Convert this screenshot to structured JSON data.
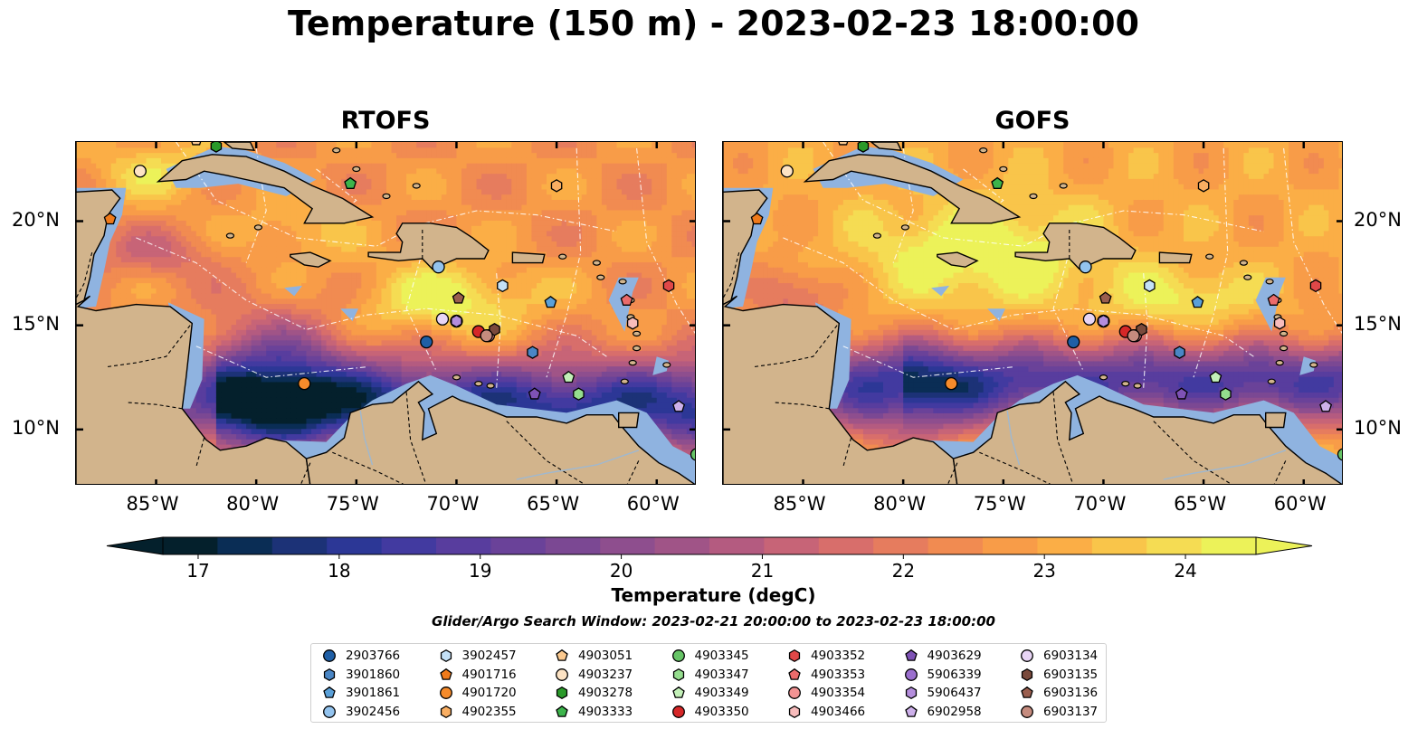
{
  "title": "Temperature (150 m) - 2023-02-23 18:00:00",
  "panels": [
    {
      "title": "RTOFS"
    },
    {
      "title": "GOFS"
    }
  ],
  "axes": {
    "lon_labels": [
      "85°W",
      "80°W",
      "75°W",
      "70°W",
      "65°W",
      "60°W"
    ],
    "lat_labels": [
      "20°N",
      "15°N",
      "10°N"
    ],
    "lon_range": [
      -89,
      -58
    ],
    "lat_range": [
      7.3,
      23.8
    ]
  },
  "colorbar": {
    "label": "Temperature (degC)",
    "ticks": [
      "17",
      "18",
      "19",
      "20",
      "21",
      "22",
      "23",
      "24"
    ],
    "range": [
      16.75,
      24.5
    ],
    "colormap": "thermal",
    "colors": [
      "#04202c",
      "#0a2d55",
      "#1c3277",
      "#2c3796",
      "#423aa0",
      "#583d9e",
      "#6a4299",
      "#7b4893",
      "#8e4e8e",
      "#a05487",
      "#b45b80",
      "#c76477",
      "#d86e6b",
      "#e67c5e",
      "#f18b51",
      "#f89c48",
      "#fbae46",
      "#f9c54a",
      "#f5dc53",
      "#ecf259"
    ],
    "extend": "both"
  },
  "search_window": "Glider/Argo Search Window: 2023-02-21 20:00:00 to 2023-02-23 18:00:00",
  "map_colors": {
    "land": "#d2b48c",
    "shallow": "#8fb3e0",
    "coast": "#000000"
  },
  "platforms": [
    {
      "id": "2903766",
      "marker": "circle",
      "color": "#1f5fa6",
      "lon": -71.5,
      "lat": 14.2
    },
    {
      "id": "3901860",
      "marker": "hexagon",
      "color": "#4a86c5",
      "lon": -66.2,
      "lat": 13.7
    },
    {
      "id": "3901861",
      "marker": "pentagon",
      "color": "#5aa0d8",
      "lon": -65.3,
      "lat": 16.1
    },
    {
      "id": "3902456",
      "marker": "circle",
      "color": "#93c3ee",
      "lon": -70.9,
      "lat": 17.8
    },
    {
      "id": "3902457",
      "marker": "hexagon",
      "color": "#c4e1f7",
      "lon": -67.7,
      "lat": 16.9
    },
    {
      "id": "4901716",
      "marker": "pentagon",
      "color": "#f07a1a",
      "lon": -87.3,
      "lat": 20.1
    },
    {
      "id": "4901720",
      "marker": "circle",
      "color": "#f68b2b",
      "lon": -77.6,
      "lat": 12.2
    },
    {
      "id": "4902355",
      "marker": "hexagon",
      "color": "#f9ae62",
      "lon": -65.0,
      "lat": 21.7
    },
    {
      "id": "4903051",
      "marker": "pentagon",
      "color": "#fbc98f",
      "lon": -83.0,
      "lat": 23.9
    },
    {
      "id": "4903237",
      "marker": "circle",
      "color": "#fde3c4",
      "lon": -85.8,
      "lat": 22.4
    },
    {
      "id": "4903278",
      "marker": "hexagon",
      "color": "#2a9a2a",
      "lon": -82.0,
      "lat": 23.6
    },
    {
      "id": "4903333",
      "marker": "pentagon",
      "color": "#3cb44b",
      "lon": -75.3,
      "lat": 21.8
    },
    {
      "id": "4903345",
      "marker": "circle",
      "color": "#66c466",
      "lon": -58.0,
      "lat": 8.8
    },
    {
      "id": "4903347",
      "marker": "hexagon",
      "color": "#95dd8e",
      "lon": -63.9,
      "lat": 11.7
    },
    {
      "id": "4903349",
      "marker": "pentagon",
      "color": "#c3f0b8",
      "lon": -64.4,
      "lat": 12.5
    },
    {
      "id": "4903350",
      "marker": "circle",
      "color": "#d62728",
      "lon": -68.9,
      "lat": 14.7
    },
    {
      "id": "4903352",
      "marker": "hexagon",
      "color": "#e04848",
      "lon": -59.4,
      "lat": 16.9
    },
    {
      "id": "4903353",
      "marker": "pentagon",
      "color": "#eb6b6b",
      "lon": -61.5,
      "lat": 16.2
    },
    {
      "id": "4903354",
      "marker": "circle",
      "color": "#f29393",
      "lon": -68.4,
      "lat": 14.5
    },
    {
      "id": "4903466",
      "marker": "hexagon",
      "color": "#f8bcbc",
      "lon": -61.2,
      "lat": 15.1
    },
    {
      "id": "4903629",
      "marker": "pentagon",
      "color": "#7e52b5",
      "lon": -66.1,
      "lat": 11.7
    },
    {
      "id": "5906339",
      "marker": "circle",
      "color": "#9b6fce",
      "lon": -70.0,
      "lat": 15.2
    },
    {
      "id": "5906437",
      "marker": "hexagon",
      "color": "#b48ddc",
      "lon": -70.0,
      "lat": 15.2
    },
    {
      "id": "6902958",
      "marker": "pentagon",
      "color": "#cdb0ea",
      "lon": -58.9,
      "lat": 11.1
    },
    {
      "id": "6903134",
      "marker": "circle",
      "color": "#e8d5f5",
      "lon": -70.7,
      "lat": 15.3
    },
    {
      "id": "6903135",
      "marker": "hexagon",
      "color": "#7a4a3c",
      "lon": -68.1,
      "lat": 14.8
    },
    {
      "id": "6903136",
      "marker": "pentagon",
      "color": "#9a5e4e",
      "lon": -69.9,
      "lat": 16.3
    },
    {
      "id": "6903137",
      "marker": "circle",
      "color": "#c58b7e",
      "lon": -68.5,
      "lat": 14.5
    }
  ]
}
